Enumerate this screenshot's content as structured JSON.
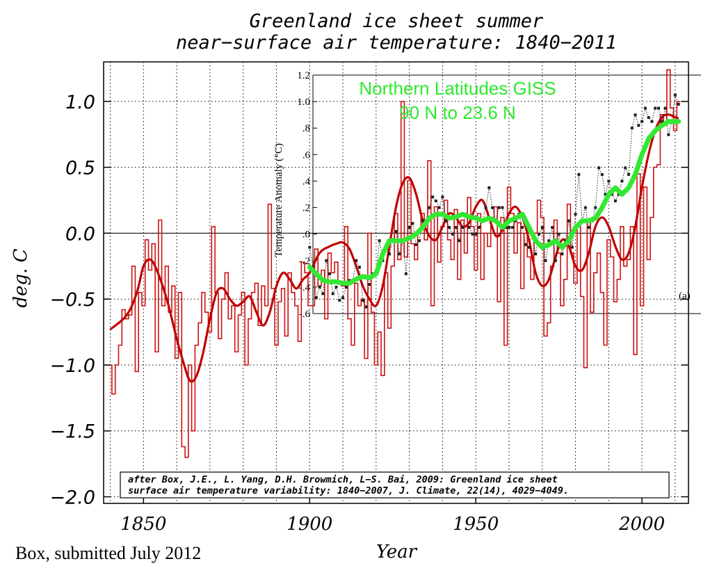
{
  "chart_data": {
    "type": "line",
    "title": [
      "Greenland ice sheet summer",
      "near−surface air temperature: 1840−2011"
    ],
    "xlabel": "Year",
    "ylabel": "deg. C",
    "xlim": [
      1838,
      2014
    ],
    "ylim": [
      -2.05,
      1.3
    ],
    "x_ticks": [
      "1850",
      "1900",
      "1950",
      "2000"
    ],
    "x_tick_values": [
      1850,
      1900,
      1950,
      2000
    ],
    "y_ticks": [
      "−2.0",
      "−1.5",
      "−1.0",
      "−0.5",
      "0.0",
      "0.5",
      "1.0"
    ],
    "y_tick_values": [
      -2.0,
      -1.5,
      -1.0,
      -0.5,
      0.0,
      0.5,
      1.0
    ],
    "grid": true,
    "colors": {
      "annual": "#cc1010",
      "smooth": "#c00000",
      "giss": "#33e833",
      "giss_dots": "#222222"
    },
    "series": [
      {
        "name": "",
        "style": "step",
        "x": [
          1840,
          1841,
          1842,
          1843,
          1844,
          1845,
          1846,
          1847,
          1848,
          1849,
          1850,
          1851,
          1852,
          1853,
          1854,
          1855,
          1856,
          1857,
          1858,
          1859,
          1860,
          1861,
          1862,
          1863,
          1864,
          1865,
          1866,
          1867,
          1868,
          1869,
          1870,
          1871,
          1872,
          1873,
          1874,
          1875,
          1876,
          1877,
          1878,
          1879,
          1880,
          1881,
          1882,
          1883,
          1884,
          1885,
          1886,
          1887,
          1888,
          1889,
          1890,
          1891,
          1892,
          1893,
          1894,
          1895,
          1896,
          1897,
          1898,
          1899,
          1900,
          1901,
          1902,
          1903,
          1904,
          1905,
          1906,
          1907,
          1908,
          1909,
          1910,
          1911,
          1912,
          1913,
          1914,
          1915,
          1916,
          1917,
          1918,
          1919,
          1920,
          1921,
          1922,
          1923,
          1924,
          1925,
          1926,
          1927,
          1928,
          1929,
          1930,
          1931,
          1932,
          1933,
          1934,
          1935,
          1936,
          1937,
          1938,
          1939,
          1940,
          1941,
          1942,
          1943,
          1944,
          1945,
          1946,
          1947,
          1948,
          1949,
          1950,
          1951,
          1952,
          1953,
          1954,
          1955,
          1956,
          1957,
          1958,
          1959,
          1960,
          1961,
          1962,
          1963,
          1964,
          1965,
          1966,
          1967,
          1968,
          1969,
          1970,
          1971,
          1972,
          1973,
          1974,
          1975,
          1976,
          1977,
          1978,
          1979,
          1980,
          1981,
          1982,
          1983,
          1984,
          1985,
          1986,
          1987,
          1988,
          1989,
          1990,
          1991,
          1992,
          1993,
          1994,
          1995,
          1996,
          1997,
          1998,
          1999,
          2000,
          2001,
          2002,
          2003,
          2004,
          2005,
          2006,
          2007,
          2008,
          2009,
          2010,
          2011
        ],
        "values": [
          -1.0,
          -1.22,
          -1.0,
          -0.85,
          -0.58,
          -0.65,
          -0.62,
          -0.25,
          -1.05,
          -0.45,
          -0.55,
          -0.05,
          -0.28,
          -0.08,
          -0.9,
          0.1,
          -0.55,
          -0.25,
          -0.6,
          -0.4,
          -0.95,
          -0.45,
          -1.62,
          -1.7,
          -1.0,
          -1.5,
          -0.85,
          -0.68,
          -0.45,
          -0.6,
          -0.75,
          0.05,
          -0.45,
          -0.8,
          -0.5,
          -0.3,
          -0.65,
          -0.55,
          -0.9,
          -0.62,
          -0.45,
          -1.0,
          -0.65,
          -0.45,
          -0.38,
          -0.7,
          -0.4,
          -0.55,
          0.22,
          -0.42,
          -0.85,
          -0.52,
          -0.42,
          -0.78,
          -0.3,
          -0.45,
          -0.55,
          -0.82,
          -0.22,
          -0.3,
          -0.55,
          -0.55,
          -0.12,
          -0.4,
          -0.28,
          -0.65,
          -0.15,
          -0.3,
          -0.22,
          -0.38,
          -0.4,
          0.05,
          -0.65,
          -0.85,
          -0.38,
          -0.55,
          -0.5,
          -0.95,
          0.0,
          -0.6,
          -1.0,
          -0.75,
          -1.08,
          -0.3,
          -0.72,
          -0.25,
          0.15,
          -0.2,
          1.0,
          -0.18,
          0.4,
          -0.08,
          -0.2,
          0.02,
          0.15,
          -0.05,
          0.55,
          -0.55,
          0.2,
          -0.22,
          0.05,
          0.25,
          -0.05,
          -0.2,
          0.18,
          -0.35,
          0.1,
          -0.15,
          0.27,
          0.05,
          -0.28,
          0.15,
          -0.35,
          0.0,
          -0.1,
          0.12,
          0.2,
          -0.52,
          0.12,
          -0.85,
          0.35,
          0.15,
          -0.15,
          0.08,
          -0.42,
          0.0,
          -0.18,
          -0.35,
          0.0,
          0.25,
          0.12,
          -0.78,
          -0.68,
          -0.25,
          0.1,
          -0.15,
          -0.55,
          -0.35,
          0.22,
          -0.15,
          -0.38,
          0.05,
          -0.48,
          -1.02,
          0.1,
          -0.6,
          -0.3,
          -0.15,
          -0.45,
          -0.85,
          -0.05,
          -0.18,
          -0.52,
          -0.35,
          0.05,
          -0.25,
          -0.2,
          0.05,
          -0.92,
          0.45,
          -0.55,
          0.35,
          -0.2,
          0.12,
          0.5,
          0.52,
          0.9,
          0.82,
          1.24,
          0.95,
          0.78,
          1.0
        ]
      },
      {
        "name": "",
        "style": "smooth",
        "x": [
          1840,
          1845,
          1848,
          1850,
          1852,
          1854,
          1857,
          1860,
          1862,
          1864,
          1866,
          1868,
          1870,
          1872,
          1874,
          1876,
          1878,
          1880,
          1882,
          1884,
          1886,
          1888,
          1890,
          1892,
          1894,
          1896,
          1898,
          1900,
          1903,
          1906,
          1908,
          1910,
          1912,
          1914,
          1916,
          1918,
          1920,
          1922,
          1924,
          1926,
          1928,
          1930,
          1932,
          1934,
          1936,
          1938,
          1940,
          1942,
          1944,
          1946,
          1948,
          1950,
          1952,
          1954,
          1956,
          1958,
          1960,
          1962,
          1964,
          1966,
          1968,
          1970,
          1972,
          1974,
          1976,
          1978,
          1980,
          1982,
          1984,
          1986,
          1988,
          1990,
          1992,
          1994,
          1996,
          1998,
          2000,
          2002,
          2004,
          2006,
          2008,
          2010,
          2011
        ],
        "values": [
          -0.73,
          -0.62,
          -0.45,
          -0.25,
          -0.2,
          -0.28,
          -0.5,
          -0.8,
          -0.98,
          -1.12,
          -1.08,
          -0.9,
          -0.65,
          -0.45,
          -0.42,
          -0.5,
          -0.55,
          -0.52,
          -0.48,
          -0.6,
          -0.7,
          -0.6,
          -0.4,
          -0.3,
          -0.35,
          -0.42,
          -0.35,
          -0.3,
          -0.15,
          -0.1,
          -0.08,
          -0.07,
          -0.12,
          -0.25,
          -0.4,
          -0.5,
          -0.55,
          -0.4,
          -0.1,
          0.2,
          0.38,
          0.42,
          0.3,
          0.1,
          -0.02,
          -0.05,
          0.05,
          0.15,
          0.12,
          0.05,
          0.08,
          0.2,
          0.25,
          0.12,
          -0.02,
          0.02,
          0.15,
          0.2,
          0.12,
          -0.05,
          -0.3,
          -0.4,
          -0.35,
          -0.18,
          -0.05,
          -0.1,
          -0.25,
          -0.28,
          -0.15,
          0.05,
          0.12,
          0.05,
          -0.1,
          -0.2,
          -0.15,
          0.05,
          0.35,
          0.6,
          0.78,
          0.88,
          0.9,
          0.88,
          0.87
        ]
      }
    ],
    "inset": {
      "y_ticks": [
        "1.2",
        "1.0",
        ".8",
        ".6",
        ".4",
        ".2",
        ".0",
        "-.2",
        "-.4",
        "-.6"
      ],
      "y_tick_values": [
        1.2,
        1.0,
        0.8,
        0.6,
        0.4,
        0.2,
        0.0,
        -0.2,
        -0.4,
        -0.6
      ],
      "ylim": [
        -0.6,
        1.2
      ],
      "ylabel": "Temperature Anomaly (°C)",
      "label": "(a)",
      "series_title": [
        "Northern Latitudes GISS",
        "90 N to 23.6 N"
      ],
      "annual_dotted": {
        "x": [
          1900,
          1901,
          1902,
          1903,
          1904,
          1905,
          1906,
          1907,
          1908,
          1909,
          1910,
          1911,
          1912,
          1913,
          1914,
          1915,
          1916,
          1917,
          1918,
          1919,
          1920,
          1921,
          1922,
          1923,
          1924,
          1925,
          1926,
          1927,
          1928,
          1929,
          1930,
          1931,
          1932,
          1933,
          1934,
          1935,
          1936,
          1937,
          1938,
          1939,
          1940,
          1941,
          1942,
          1943,
          1944,
          1945,
          1946,
          1947,
          1948,
          1949,
          1950,
          1951,
          1952,
          1953,
          1954,
          1955,
          1956,
          1957,
          1958,
          1959,
          1960,
          1961,
          1962,
          1963,
          1964,
          1965,
          1966,
          1967,
          1968,
          1969,
          1970,
          1971,
          1972,
          1973,
          1974,
          1975,
          1976,
          1977,
          1978,
          1979,
          1980,
          1981,
          1982,
          1983,
          1984,
          1985,
          1986,
          1987,
          1988,
          1989,
          1990,
          1991,
          1992,
          1993,
          1994,
          1995,
          1996,
          1997,
          1998,
          1999,
          2000,
          2001,
          2002,
          2003,
          2004,
          2005,
          2006,
          2007,
          2008,
          2009,
          2010,
          2011
        ],
        "values": [
          -0.1,
          -0.25,
          -0.48,
          -0.4,
          -0.45,
          -0.2,
          -0.3,
          -0.45,
          -0.4,
          -0.5,
          -0.48,
          -0.4,
          -0.35,
          -0.35,
          -0.2,
          -0.25,
          -0.5,
          -0.55,
          -0.38,
          -0.3,
          -0.3,
          -0.05,
          -0.2,
          -0.1,
          -0.15,
          -0.05,
          0.02,
          -0.15,
          -0.05,
          -0.3,
          0.05,
          0.08,
          -0.08,
          -0.05,
          0.1,
          0.1,
          0.2,
          0.28,
          0.25,
          0.2,
          0.28,
          0.1,
          0.05,
          0.0,
          0.05,
          -0.05,
          0.05,
          0.15,
          0.05,
          0.0,
          0.0,
          0.05,
          0.1,
          0.2,
          0.35,
          0.2,
          0.1,
          0.2,
          0.2,
          0.05,
          0.05,
          0.05,
          0.1,
          0.15,
          0.05,
          -0.08,
          -0.1,
          0.0,
          -0.15,
          0.0,
          0.05,
          -0.2,
          -0.05,
          0.05,
          -0.2,
          0.0,
          -0.15,
          -0.05,
          0.1,
          -0.1,
          0.15,
          0.45,
          0.1,
          0.2,
          0.05,
          0.1,
          0.2,
          0.5,
          0.45,
          0.3,
          0.4,
          0.3,
          0.25,
          0.3,
          0.4,
          0.5,
          0.45,
          0.8,
          0.9,
          0.82,
          0.85,
          0.95,
          0.88,
          0.85,
          0.95,
          0.95,
          0.85,
          0.95,
          0.75,
          0.85,
          1.05,
          0.98
        ]
      },
      "running_mean": {
        "x": [
          1900,
          1902,
          1904,
          1906,
          1908,
          1910,
          1912,
          1914,
          1916,
          1918,
          1920,
          1922,
          1924,
          1926,
          1928,
          1930,
          1932,
          1934,
          1936,
          1938,
          1940,
          1942,
          1944,
          1946,
          1948,
          1950,
          1952,
          1954,
          1956,
          1958,
          1960,
          1962,
          1964,
          1966,
          1968,
          1970,
          1972,
          1974,
          1976,
          1978,
          1980,
          1982,
          1984,
          1986,
          1988,
          1990,
          1992,
          1994,
          1996,
          1998,
          2000,
          2002,
          2004,
          2006,
          2008,
          2010,
          2011
        ],
        "values": [
          -0.25,
          -0.3,
          -0.35,
          -0.36,
          -0.36,
          -0.37,
          -0.37,
          -0.34,
          -0.32,
          -0.33,
          -0.3,
          -0.15,
          -0.05,
          -0.05,
          -0.05,
          -0.03,
          0.0,
          0.05,
          0.12,
          0.15,
          0.15,
          0.12,
          0.13,
          0.15,
          0.13,
          0.12,
          0.1,
          0.12,
          0.1,
          0.05,
          0.1,
          0.12,
          0.15,
          0.05,
          -0.05,
          -0.1,
          -0.08,
          -0.05,
          -0.1,
          -0.05,
          0.05,
          0.1,
          0.1,
          0.12,
          0.2,
          0.3,
          0.35,
          0.3,
          0.35,
          0.45,
          0.6,
          0.72,
          0.78,
          0.82,
          0.85,
          0.85,
          0.85
        ]
      }
    },
    "annotation": [
      "after Box, J.E., L. Yang, D.H. Browmich, L−S. Bai, 2009: Greenland ice sheet",
      "surface air temperature variability: 1840−2007, J. Climate, 22(14), 4029−4049."
    ],
    "credit": "Box, submitted July 2012"
  }
}
